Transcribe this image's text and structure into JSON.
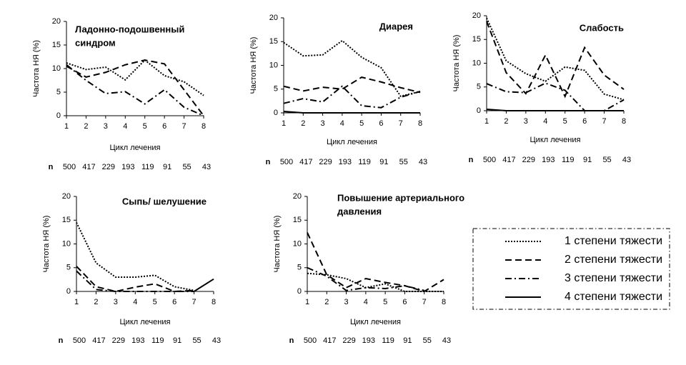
{
  "chart_data": [
    {
      "type": "line",
      "title": [
        "Ладонно-подошвенный",
        "синдром"
      ],
      "ylabel": "Частота НЯ (%)",
      "xlabel": "Цикл лечения",
      "x": [
        1,
        2,
        3,
        4,
        5,
        6,
        7,
        8
      ],
      "ylim": [
        0,
        20
      ],
      "yticks": [
        0,
        5,
        10,
        15,
        20
      ],
      "xlim": [
        1,
        8
      ],
      "n_label": "n",
      "n_values": [
        500,
        417,
        229,
        193,
        119,
        91,
        55,
        43
      ],
      "series": [
        {
          "values": [
            11.2,
            9.8,
            10.3,
            7.6,
            11.8,
            8.5,
            7.2,
            4.3
          ]
        },
        {
          "values": [
            10.5,
            8.2,
            9.2,
            10.8,
            11.8,
            11,
            5.5,
            0
          ]
        },
        {
          "values": [
            10.8,
            7.5,
            4.7,
            5.1,
            2.5,
            5.5,
            1.8,
            0
          ]
        },
        {
          "values": [
            null,
            null,
            null,
            null,
            null,
            null,
            null,
            null
          ]
        }
      ]
    },
    {
      "type": "line",
      "title": [
        "Диарея"
      ],
      "ylabel": "Частота НЯ (%)",
      "xlabel": "Цикл лечения",
      "x": [
        1,
        2,
        3,
        4,
        5,
        6,
        7,
        8
      ],
      "ylim": [
        0,
        20
      ],
      "yticks": [
        0,
        5,
        10,
        15,
        20
      ],
      "xlim": [
        1,
        8
      ],
      "n_label": "n",
      "n_values": [
        500,
        417,
        229,
        193,
        119,
        91,
        55,
        43
      ],
      "series": [
        {
          "values": [
            14.8,
            12,
            12.2,
            15.2,
            11.7,
            9.5,
            3.5,
            4.5
          ]
        },
        {
          "values": [
            5.6,
            4.6,
            5.4,
            5,
            7.5,
            6.5,
            5.3,
            4.3
          ]
        },
        {
          "values": [
            2,
            3,
            2.3,
            5.6,
            1.5,
            1.1,
            3.3,
            4.5
          ]
        },
        {
          "values": [
            0.3,
            0,
            0,
            0,
            0,
            0,
            0,
            0
          ]
        }
      ]
    },
    {
      "type": "line",
      "title": [
        "Слабость"
      ],
      "ylabel": "Частота НЯ (%)",
      "xlabel": "Цикл лечения",
      "x": [
        1,
        2,
        3,
        4,
        5,
        6,
        7,
        8
      ],
      "ylim": [
        0,
        20
      ],
      "yticks": [
        0,
        5,
        10,
        15,
        20
      ],
      "xlim": [
        1,
        8
      ],
      "n_label": "n",
      "n_values": [
        500,
        417,
        229,
        193,
        119,
        91,
        55,
        43
      ],
      "series": [
        {
          "values": [
            19.5,
            10.5,
            7.8,
            6.2,
            9.2,
            8.5,
            3.5,
            2.3
          ]
        },
        {
          "values": [
            18.8,
            8,
            3.6,
            11.7,
            3,
            13.3,
            7.5,
            4.5
          ]
        },
        {
          "values": [
            5.7,
            4,
            3.8,
            5.8,
            4.3,
            0,
            0,
            2.3
          ]
        },
        {
          "values": [
            0.3,
            0,
            0,
            0,
            0,
            0,
            0,
            0
          ]
        }
      ]
    },
    {
      "type": "line",
      "title": [
        "Сыпь/ шелушение"
      ],
      "ylabel": "Частота НЯ (%)",
      "xlabel": "Цикл лечения",
      "x": [
        1,
        2,
        3,
        4,
        5,
        6,
        7,
        8
      ],
      "ylim": [
        0,
        20
      ],
      "yticks": [
        0,
        5,
        10,
        15,
        20
      ],
      "xlim": [
        1,
        8
      ],
      "n_label": "n",
      "n_values": [
        500,
        417,
        229,
        193,
        119,
        91,
        55,
        43
      ],
      "series": [
        {
          "values": [
            14.5,
            6,
            3,
            3,
            3.4,
            1,
            0.2,
            null
          ]
        },
        {
          "values": [
            5.3,
            1,
            0,
            0.9,
            1.6,
            0,
            0.2,
            null
          ]
        },
        {
          "values": [
            4.3,
            0.4,
            0,
            0,
            0,
            0,
            0,
            null
          ]
        },
        {
          "values": [
            null,
            null,
            null,
            null,
            null,
            null,
            0,
            2.6
          ]
        }
      ]
    },
    {
      "type": "line",
      "title": [
        "Повышение артериального",
        "давления"
      ],
      "ylabel": "Частота НЯ (%)",
      "xlabel": "Цикл лечения",
      "x": [
        1,
        2,
        3,
        4,
        5,
        6,
        7,
        8
      ],
      "ylim": [
        0,
        20
      ],
      "yticks": [
        0,
        5,
        10,
        15,
        20
      ],
      "xlim": [
        1,
        8
      ],
      "n_label": "n",
      "n_values": [
        500,
        417,
        229,
        193,
        119,
        91,
        55,
        43
      ],
      "series": [
        {
          "values": [
            3.8,
            3.5,
            2.7,
            0.8,
            1.6,
            0,
            0,
            0
          ]
        },
        {
          "values": [
            12.4,
            3.5,
            0.8,
            2.7,
            1.9,
            1.2,
            0,
            2.5
          ]
        },
        {
          "values": [
            5,
            3.2,
            0.2,
            0.8,
            0.6,
            1.2,
            0.2,
            null
          ]
        },
        {
          "values": [
            null,
            null,
            null,
            null,
            null,
            null,
            null,
            null
          ]
        }
      ]
    }
  ],
  "legend": [
    {
      "name": "1 степени тяжести",
      "dash": "dotted"
    },
    {
      "name": "2 степени тяжести",
      "dash": "dashed"
    },
    {
      "name": "3 степени тяжести",
      "dash": "dashdot"
    },
    {
      "name": "4 степени тяжести",
      "dash": "solid"
    }
  ]
}
